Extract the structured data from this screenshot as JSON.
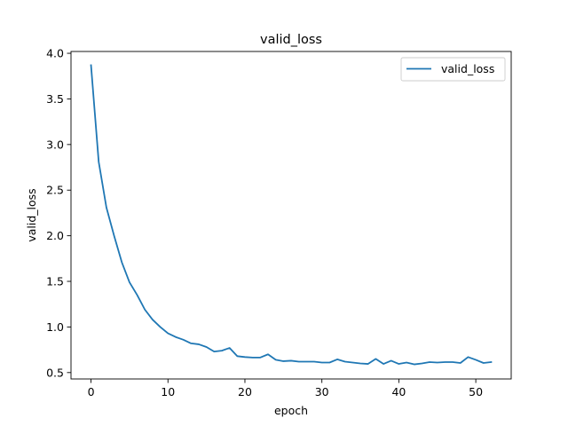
{
  "chart_data": {
    "type": "line",
    "title": "valid_loss",
    "xlabel": "epoch",
    "ylabel": "valid_loss",
    "xlim": [
      -2.6,
      54.6
    ],
    "ylim": [
      0.43,
      4.02
    ],
    "xticks": [
      0,
      10,
      20,
      30,
      40,
      50
    ],
    "yticks": [
      0.5,
      1.0,
      1.5,
      2.0,
      2.5,
      3.0,
      3.5,
      4.0
    ],
    "xtick_labels": [
      "0",
      "10",
      "20",
      "30",
      "40",
      "50"
    ],
    "ytick_labels": [
      "0.5",
      "1.0",
      "1.5",
      "2.0",
      "2.5",
      "3.0",
      "3.5",
      "4.0"
    ],
    "grid": false,
    "legend": "top-right",
    "series": [
      {
        "name": "valid_loss",
        "color": "#1f77b4",
        "x": [
          0,
          1,
          2,
          3,
          4,
          5,
          6,
          7,
          8,
          9,
          10,
          11,
          12,
          13,
          14,
          15,
          16,
          17,
          18,
          19,
          20,
          21,
          22,
          23,
          24,
          25,
          26,
          27,
          28,
          29,
          30,
          31,
          32,
          33,
          34,
          35,
          36,
          37,
          38,
          39,
          40,
          41,
          42,
          43,
          44,
          45,
          46,
          47,
          48,
          49,
          50,
          51,
          52
        ],
        "values": [
          3.87,
          2.81,
          2.31,
          2.0,
          1.71,
          1.49,
          1.35,
          1.19,
          1.08,
          1.0,
          0.93,
          0.89,
          0.86,
          0.82,
          0.81,
          0.78,
          0.73,
          0.74,
          0.77,
          0.68,
          0.67,
          0.665,
          0.665,
          0.7,
          0.64,
          0.625,
          0.63,
          0.62,
          0.62,
          0.62,
          0.61,
          0.61,
          0.645,
          0.62,
          0.61,
          0.6,
          0.595,
          0.65,
          0.595,
          0.63,
          0.595,
          0.61,
          0.59,
          0.6,
          0.615,
          0.61,
          0.615,
          0.615,
          0.605,
          0.67,
          0.64,
          0.605,
          0.615
        ]
      }
    ]
  }
}
